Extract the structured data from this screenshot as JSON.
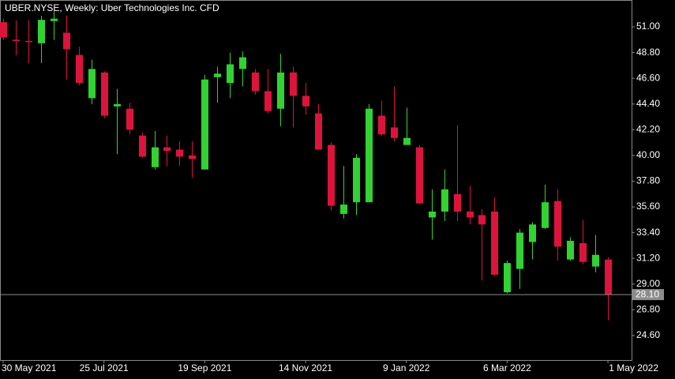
{
  "chart_data": {
    "type": "candlestick",
    "title": "UBER.NYSE, Weekly:  Uber Technologies Inc. CFD",
    "categories": [
      "30 May 2021",
      null,
      null,
      null,
      null,
      null,
      null,
      null,
      "25 Jul 2021",
      null,
      null,
      null,
      null,
      null,
      null,
      null,
      "19 Sep 2021",
      null,
      null,
      null,
      null,
      null,
      null,
      null,
      "14 Nov 2021",
      null,
      null,
      null,
      null,
      null,
      null,
      null,
      "9 Jan 2022",
      null,
      null,
      null,
      null,
      null,
      null,
      null,
      "6 Mar 2022",
      null,
      null,
      null,
      null,
      null,
      null,
      null,
      "1 May 2022"
    ],
    "open": [
      51.4,
      49.9,
      49.8,
      49.6,
      51.5,
      50.5,
      48.6,
      44.9,
      47.1,
      44.2,
      44.0,
      41.7,
      39.0,
      40.7,
      40.5,
      40.0,
      38.8,
      46.7,
      46.2,
      47.4,
      47.1,
      45.5,
      44.0,
      47.1,
      45.1,
      43.6,
      40.9,
      35.0,
      36.0,
      36.0,
      43.4,
      42.4,
      40.9,
      40.7,
      34.7,
      35.2,
      36.7,
      35.2,
      34.9,
      35.2,
      28.3,
      30.3,
      32.6,
      33.8,
      36.1,
      31.1,
      32.5,
      30.5,
      31.1
    ],
    "high": [
      51.7,
      51.55,
      51.6,
      51.95,
      52.35,
      51.95,
      49.3,
      48.2,
      47.2,
      45.7,
      44.5,
      41.95,
      42.1,
      41.7,
      41.2,
      41.2,
      46.9,
      47.6,
      48.8,
      48.9,
      47.4,
      47.4,
      48.7,
      47.6,
      46.2,
      44.4,
      41.1,
      39.1,
      40.1,
      44.4,
      44.7,
      45.9,
      44.1,
      40.9,
      37.1,
      38.8,
      42.6,
      37.4,
      35.4,
      36.4,
      31.0,
      33.7,
      34.3,
      37.5,
      37.1,
      33.0,
      34.5,
      33.2,
      31.3
    ],
    "low": [
      49.9,
      48.57,
      47.9,
      47.9,
      49.9,
      46.5,
      46.0,
      44.4,
      43.2,
      40.1,
      41.8,
      39.8,
      38.8,
      39.1,
      39.1,
      38.1,
      38.8,
      44.5,
      44.9,
      45.9,
      45.2,
      43.6,
      42.5,
      42.4,
      43.5,
      40.5,
      35.3,
      34.6,
      34.9,
      36.0,
      41.7,
      41.2,
      40.9,
      35.9,
      32.8,
      34.4,
      34.4,
      34.1,
      29.3,
      29.7,
      28.2,
      28.6,
      31.1,
      33.7,
      31.0,
      31.0,
      30.7,
      30.0,
      25.9
    ],
    "close": [
      50.1,
      49.79,
      49.7,
      51.6,
      51.7,
      49.1,
      46.2,
      47.4,
      43.4,
      44.4,
      42.2,
      39.9,
      40.7,
      40.4,
      39.9,
      39.7,
      46.5,
      47.0,
      47.8,
      48.4,
      45.5,
      43.8,
      47.1,
      45.1,
      44.2,
      40.5,
      35.7,
      35.8,
      39.8,
      44.0,
      41.8,
      41.5,
      41.5,
      35.9,
      35.2,
      37.1,
      35.2,
      34.7,
      34.1,
      29.8,
      30.8,
      33.4,
      34.1,
      36.0,
      32.2,
      32.7,
      30.9,
      31.5,
      28.1
    ],
    "up_color": "#32d232",
    "down_color": "#dc143c",
    "ylim": [
      22.5,
      53.3
    ],
    "yticks": [
      {
        "value": 24.6,
        "label": "24.60"
      },
      {
        "value": 26.8,
        "label": "26.80"
      },
      {
        "value": 29.0,
        "label": "29.00"
      },
      {
        "value": 31.2,
        "label": "31.20"
      },
      {
        "value": 33.4,
        "label": "33.40"
      },
      {
        "value": 35.6,
        "label": "35.60"
      },
      {
        "value": 37.8,
        "label": "37.80"
      },
      {
        "value": 40.0,
        "label": "40.00"
      },
      {
        "value": 42.2,
        "label": "42.20"
      },
      {
        "value": 44.4,
        "label": "44.40"
      },
      {
        "value": 46.6,
        "label": "46.60"
      },
      {
        "value": 48.8,
        "label": "48.80"
      },
      {
        "value": 51.0,
        "label": "51.00"
      }
    ],
    "last_price": {
      "value": 28.1,
      "label": "28.10"
    },
    "grid": false
  }
}
